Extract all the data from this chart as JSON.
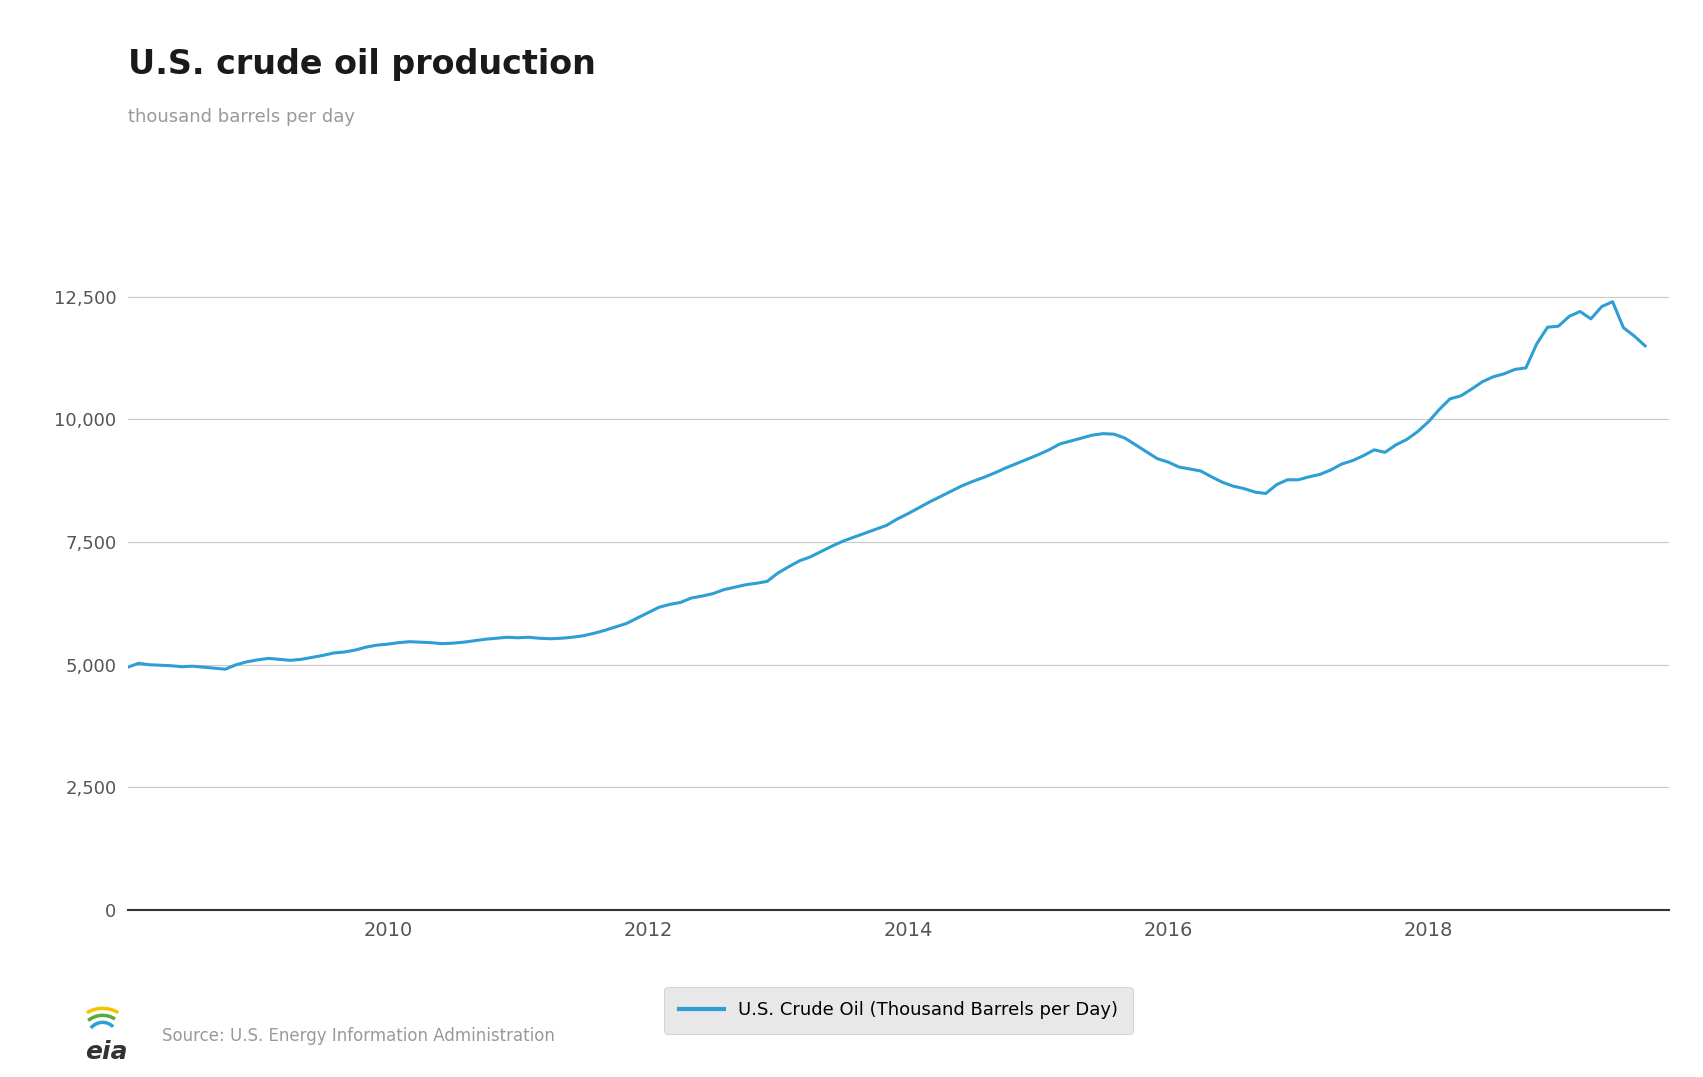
{
  "title": "U.S. crude oil production",
  "subtitle": "thousand barrels per day",
  "line_color": "#2e9fd4",
  "line_width": 2.2,
  "legend_label": "U.S. Crude Oil (Thousand Barrels per Day)",
  "legend_bg": "#e8e8e8",
  "source_text": "Source: U.S. Energy Information Administration",
  "ylim": [
    0,
    13500
  ],
  "yticks": [
    0,
    2500,
    5000,
    7500,
    10000,
    12500
  ],
  "xlim_start": 2008.0,
  "xlim_end": 2019.85,
  "background_color": "#ffffff",
  "grid_color": "#c8c8c8",
  "title_fontsize": 24,
  "subtitle_fontsize": 13,
  "axis_fontsize": 13,
  "xtick_positions": [
    2010,
    2012,
    2014,
    2016,
    2018
  ],
  "data": {
    "2008-01": 4950,
    "2008-02": 5030,
    "2008-03": 5000,
    "2008-04": 4990,
    "2008-05": 4980,
    "2008-06": 4960,
    "2008-07": 4970,
    "2008-08": 4950,
    "2008-09": 4930,
    "2008-10": 4910,
    "2008-11": 5000,
    "2008-12": 5060,
    "2009-01": 5100,
    "2009-02": 5130,
    "2009-03": 5110,
    "2009-04": 5090,
    "2009-05": 5110,
    "2009-06": 5150,
    "2009-07": 5190,
    "2009-08": 5240,
    "2009-09": 5260,
    "2009-10": 5300,
    "2009-11": 5360,
    "2009-12": 5400,
    "2010-01": 5420,
    "2010-02": 5450,
    "2010-03": 5470,
    "2010-04": 5460,
    "2010-05": 5450,
    "2010-06": 5430,
    "2010-07": 5440,
    "2010-08": 5460,
    "2010-09": 5490,
    "2010-10": 5520,
    "2010-11": 5540,
    "2010-12": 5560,
    "2011-01": 5550,
    "2011-02": 5560,
    "2011-03": 5540,
    "2011-04": 5530,
    "2011-05": 5540,
    "2011-06": 5560,
    "2011-07": 5590,
    "2011-08": 5640,
    "2011-09": 5700,
    "2011-10": 5770,
    "2011-11": 5840,
    "2011-12": 5950,
    "2012-01": 6060,
    "2012-02": 6170,
    "2012-03": 6230,
    "2012-04": 6270,
    "2012-05": 6360,
    "2012-06": 6400,
    "2012-07": 6450,
    "2012-08": 6530,
    "2012-09": 6580,
    "2012-10": 6630,
    "2012-11": 6660,
    "2012-12": 6700,
    "2013-01": 6870,
    "2013-02": 7000,
    "2013-03": 7120,
    "2013-04": 7200,
    "2013-05": 7310,
    "2013-06": 7420,
    "2013-07": 7520,
    "2013-08": 7600,
    "2013-09": 7680,
    "2013-10": 7760,
    "2013-11": 7840,
    "2013-12": 7970,
    "2014-01": 8080,
    "2014-02": 8200,
    "2014-03": 8320,
    "2014-04": 8430,
    "2014-05": 8540,
    "2014-06": 8650,
    "2014-07": 8740,
    "2014-08": 8820,
    "2014-09": 8910,
    "2014-10": 9010,
    "2014-11": 9100,
    "2014-12": 9190,
    "2015-01": 9280,
    "2015-02": 9380,
    "2015-03": 9500,
    "2015-04": 9560,
    "2015-05": 9620,
    "2015-06": 9680,
    "2015-07": 9710,
    "2015-08": 9700,
    "2015-09": 9620,
    "2015-10": 9480,
    "2015-11": 9340,
    "2015-12": 9200,
    "2016-01": 9130,
    "2016-02": 9030,
    "2016-03": 8990,
    "2016-04": 8950,
    "2016-05": 8830,
    "2016-06": 8720,
    "2016-07": 8640,
    "2016-08": 8590,
    "2016-09": 8520,
    "2016-10": 8490,
    "2016-11": 8670,
    "2016-12": 8770,
    "2017-01": 8770,
    "2017-02": 8830,
    "2017-03": 8880,
    "2017-04": 8970,
    "2017-05": 9090,
    "2017-06": 9160,
    "2017-07": 9260,
    "2017-08": 9380,
    "2017-09": 9330,
    "2017-10": 9480,
    "2017-11": 9590,
    "2017-12": 9750,
    "2018-01": 9950,
    "2018-02": 10200,
    "2018-03": 10420,
    "2018-04": 10480,
    "2018-05": 10620,
    "2018-06": 10770,
    "2018-07": 10870,
    "2018-08": 10930,
    "2018-09": 11020,
    "2018-10": 11050,
    "2018-11": 11540,
    "2018-12": 11880,
    "2019-01": 11900,
    "2019-02": 12100,
    "2019-03": 12200,
    "2019-04": 12050,
    "2019-05": 12300,
    "2019-06": 12400,
    "2019-07": 11870,
    "2019-08": 11700,
    "2019-09": 11500
  }
}
